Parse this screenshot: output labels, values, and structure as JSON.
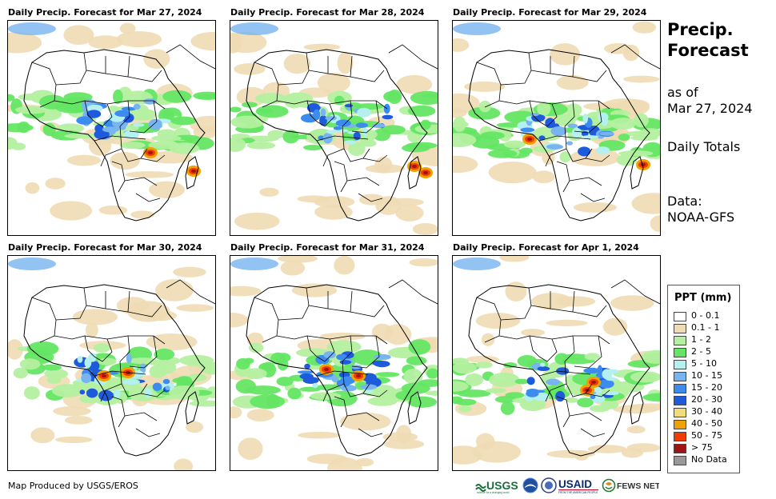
{
  "panels": [
    {
      "title": "Daily Precip. Forecast for Mar 27, 2024"
    },
    {
      "title": "Daily Precip. Forecast for Mar 28, 2024"
    },
    {
      "title": "Daily Precip. Forecast for Mar 29, 2024"
    },
    {
      "title": "Daily Precip. Forecast for Mar 30, 2024"
    },
    {
      "title": "Daily Precip. Forecast for Mar 31, 2024"
    },
    {
      "title": "Daily Precip. Forecast for Apr 1, 2024"
    }
  ],
  "side": {
    "title_line1": "Precip.",
    "title_line2": "Forecast",
    "asof_line1": "as of",
    "asof_line2": "Mar 27, 2024",
    "totals": "Daily Totals",
    "data_line1": "Data:",
    "data_line2": "NOAA-GFS"
  },
  "legend": {
    "title": "PPT (mm)",
    "items": [
      {
        "label": "0 - 0.1",
        "color": "#ffffff"
      },
      {
        "label": "0.1 - 1",
        "color": "#f0dcb4"
      },
      {
        "label": "1 - 2",
        "color": "#b4f0a0"
      },
      {
        "label": "2 - 5",
        "color": "#64e664"
      },
      {
        "label": "5 - 10",
        "color": "#b4f0f0"
      },
      {
        "label": "10 - 15",
        "color": "#78b4f0"
      },
      {
        "label": "15 - 20",
        "color": "#3c8cf0"
      },
      {
        "label": "20 - 30",
        "color": "#1e5adc"
      },
      {
        "label": "30 - 40",
        "color": "#f0dc78"
      },
      {
        "label": "40 - 50",
        "color": "#f0a000"
      },
      {
        "label": "50 - 75",
        "color": "#f03c00"
      },
      {
        "label": "> 75",
        "color": "#a01414"
      },
      {
        "label": "No Data",
        "color": "#999999"
      }
    ]
  },
  "footer": {
    "credit": "Map Produced by USGS/EROS",
    "logo_usgs": "USGS",
    "logo_usgs_sub": "science for a changing world",
    "logo_usaid": "USAID",
    "logo_usaid_sub": "FROM THE AMERICAN PEOPLE",
    "logo_fews": "FEWS NET"
  }
}
